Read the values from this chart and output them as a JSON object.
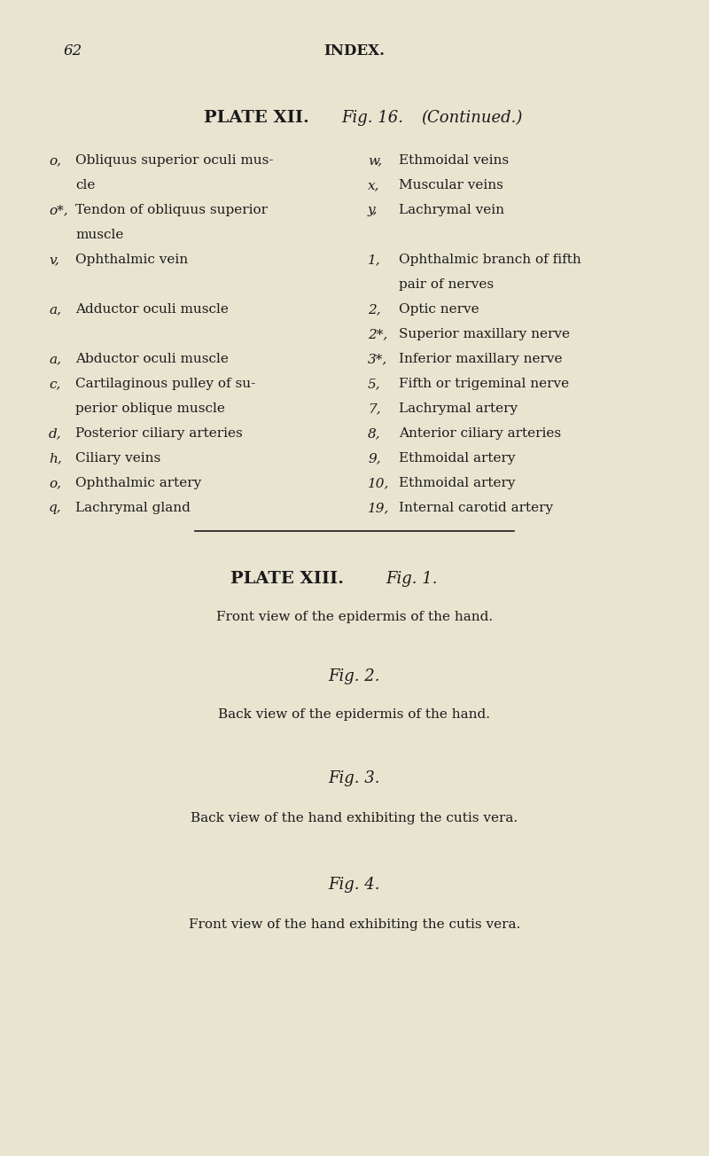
{
  "bg_color": "#e8e4d0",
  "text_color": "#1a1a1a",
  "page_number": "62",
  "page_header": "INDEX.",
  "plate12_heading": "PLATE XII.",
  "plate12_fig": "Fig. 16.",
  "plate12_continued": "(Continued.)",
  "left_col": [
    [
      "o,",
      "Obliquus superior oculi mus-"
    ],
    [
      "",
      "cle"
    ],
    [
      "o*,",
      "Tendon of obliquus superior"
    ],
    [
      "",
      "muscle"
    ],
    [
      "v,",
      "Ophthalmic vein"
    ],
    [
      "",
      ""
    ],
    [
      "a,",
      "Adductor oculi muscle"
    ],
    [
      "",
      ""
    ],
    [
      "a,",
      "Abductor oculi muscle"
    ],
    [
      "c,",
      "Cartilaginous pulley of su-"
    ],
    [
      "",
      "perior oblique muscle"
    ],
    [
      "d,",
      "Posterior ciliary arteries"
    ],
    [
      "h,",
      "Ciliary veins"
    ],
    [
      "o,",
      "Ophthalmic artery"
    ],
    [
      "q,",
      "Lachrymal gland"
    ]
  ],
  "right_col": [
    [
      "w,",
      "Ethmoidal veins"
    ],
    [
      "x,",
      "Muscular veins"
    ],
    [
      "y,",
      "Lachrymal vein"
    ],
    [
      "",
      ""
    ],
    [
      "1,",
      "Ophthalmic branch of fifth"
    ],
    [
      "",
      "pair of nerves"
    ],
    [
      "2,",
      "Optic nerve"
    ],
    [
      "2*,",
      "Superior maxillary nerve"
    ],
    [
      "3*,",
      "Inferior maxillary nerve"
    ],
    [
      "5,",
      "Fifth or trigeminal nerve"
    ],
    [
      "7,",
      "Lachrymal artery"
    ],
    [
      "8,",
      "Anterior ciliary arteries"
    ],
    [
      "9,",
      "Ethmoidal artery"
    ],
    [
      "10,",
      "Ethmoidal artery"
    ],
    [
      "19,",
      "Internal carotid artery"
    ]
  ],
  "plate13_heading": "PLATE XIII.",
  "plate13_fig1": "Fig. 1.",
  "plate13_fig1_text": "Front view of the epidermis of the hand.",
  "plate13_fig2": "Fig. 2.",
  "plate13_fig2_text": "Back view of the epidermis of the hand.",
  "plate13_fig3": "Fig. 3.",
  "plate13_fig3_text": "Back view of the hand exhibiting the cutis vera.",
  "plate13_fig4": "Fig. 4.",
  "plate13_fig4_text": "Front view of the hand exhibiting the cutis vera."
}
